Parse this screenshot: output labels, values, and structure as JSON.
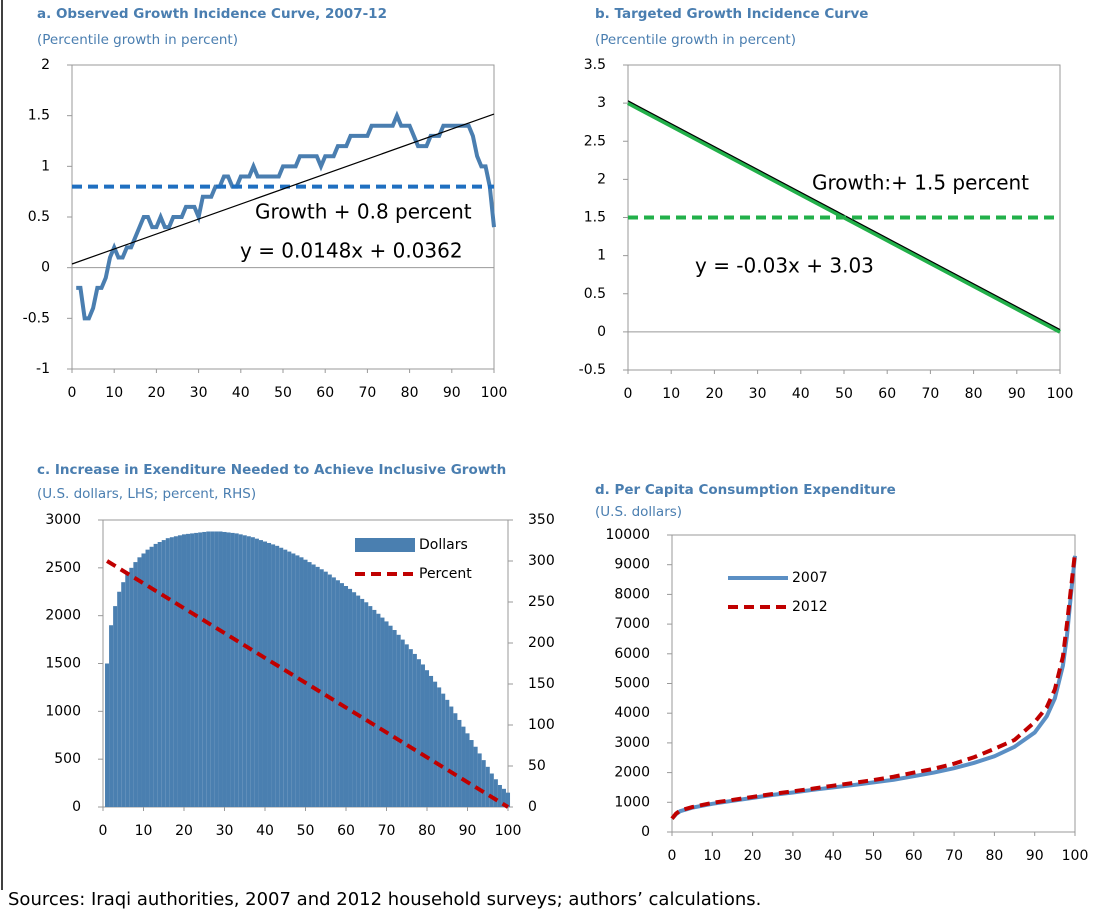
{
  "chart_data": [
    {
      "type": "line",
      "title": "a. Observed Growth Incidence Curve, 2007-12",
      "subtitle": "(Percentile growth in percent)",
      "x": [
        1,
        2,
        3,
        4,
        5,
        6,
        7,
        8,
        9,
        10,
        11,
        12,
        13,
        14,
        15,
        16,
        17,
        18,
        19,
        20,
        21,
        22,
        23,
        24,
        25,
        26,
        27,
        28,
        29,
        30,
        31,
        32,
        33,
        34,
        35,
        36,
        37,
        38,
        39,
        40,
        41,
        42,
        43,
        44,
        45,
        46,
        47,
        48,
        49,
        50,
        51,
        52,
        53,
        54,
        55,
        56,
        57,
        58,
        59,
        60,
        61,
        62,
        63,
        64,
        65,
        66,
        67,
        68,
        69,
        70,
        71,
        72,
        73,
        74,
        75,
        76,
        77,
        78,
        79,
        80,
        81,
        82,
        83,
        84,
        85,
        86,
        87,
        88,
        89,
        90,
        91,
        92,
        93,
        94,
        95,
        96,
        97,
        98,
        99,
        100
      ],
      "series": [
        {
          "color": "#4a7eb0",
          "width": 4,
          "values": [
            -0.2,
            -0.2,
            -0.5,
            -0.5,
            -0.4,
            -0.2,
            -0.2,
            -0.1,
            0.1,
            0.2,
            0.1,
            0.1,
            0.2,
            0.2,
            0.3,
            0.4,
            0.5,
            0.5,
            0.4,
            0.4,
            0.5,
            0.4,
            0.4,
            0.5,
            0.5,
            0.5,
            0.6,
            0.6,
            0.6,
            0.5,
            0.7,
            0.7,
            0.7,
            0.8,
            0.8,
            0.9,
            0.9,
            0.8,
            0.8,
            0.9,
            0.9,
            0.9,
            1,
            0.9,
            0.9,
            0.9,
            0.9,
            0.9,
            0.9,
            1,
            1,
            1,
            1,
            1.1,
            1.1,
            1.1,
            1.1,
            1.1,
            1,
            1.1,
            1.1,
            1.1,
            1.2,
            1.2,
            1.2,
            1.3,
            1.3,
            1.3,
            1.3,
            1.3,
            1.4,
            1.4,
            1.4,
            1.4,
            1.4,
            1.4,
            1.5,
            1.4,
            1.4,
            1.4,
            1.3,
            1.2,
            1.2,
            1.2,
            1.3,
            1.3,
            1.3,
            1.4,
            1.4,
            1.4,
            1.4,
            1.4,
            1.4,
            1.4,
            1.3,
            1.1,
            1,
            1,
            0.8,
            0.4
          ]
        },
        {
          "color": "#1f6fc0",
          "width": 4,
          "dash": true,
          "x": [
            0,
            100
          ],
          "values": [
            0.8,
            0.8
          ]
        },
        {
          "color": "#000000",
          "width": 1.2,
          "x": [
            0,
            100
          ],
          "values": [
            0.0362,
            1.5162
          ]
        }
      ],
      "annotations": [
        "Growth + 0.8 percent",
        "y = 0.0148x + 0.0362"
      ],
      "xlim": [
        0,
        100
      ],
      "xticks": [
        0,
        10,
        20,
        30,
        40,
        50,
        60,
        70,
        80,
        90,
        100
      ],
      "ylim": [
        -1,
        2
      ],
      "yticks": [
        -1,
        -0.5,
        0,
        0.5,
        1,
        1.5,
        2
      ]
    },
    {
      "type": "line",
      "title": "b. Targeted Growth Incidence Curve",
      "subtitle": "(Percentile growth in percent)",
      "series": [
        {
          "color": "#22b04a",
          "width": 4,
          "x": [
            0,
            100
          ],
          "values": [
            3,
            0
          ]
        },
        {
          "color": "#000000",
          "width": 1.2,
          "x": [
            0,
            100
          ],
          "values": [
            3.03,
            0.03
          ]
        },
        {
          "color": "#22b04a",
          "width": 4,
          "dash": true,
          "x": [
            0,
            100
          ],
          "values": [
            1.5,
            1.5
          ]
        }
      ],
      "annotations": [
        "Growth:+ 1.5 percent",
        "y = -0.03x + 3.03"
      ],
      "xlim": [
        0,
        100
      ],
      "xticks": [
        0,
        10,
        20,
        30,
        40,
        50,
        60,
        70,
        80,
        90,
        100
      ],
      "ylim": [
        -0.5,
        3.5
      ],
      "yticks": [
        -0.5,
        0,
        0.5,
        1,
        1.5,
        2,
        2.5,
        3,
        3.5
      ]
    },
    {
      "type": "bar",
      "title": "c. Increase in Exenditure Needed to Achieve Inclusive Growth",
      "subtitle": "(U.S. dollars, LHS; percent, RHS)",
      "x": [
        1,
        2,
        3,
        4,
        5,
        6,
        7,
        8,
        9,
        10,
        11,
        12,
        13,
        14,
        15,
        16,
        17,
        18,
        19,
        20,
        21,
        22,
        23,
        24,
        25,
        26,
        27,
        28,
        29,
        30,
        31,
        32,
        33,
        34,
        35,
        36,
        37,
        38,
        39,
        40,
        41,
        42,
        43,
        44,
        45,
        46,
        47,
        48,
        49,
        50,
        51,
        52,
        53,
        54,
        55,
        56,
        57,
        58,
        59,
        60,
        61,
        62,
        63,
        64,
        65,
        66,
        67,
        68,
        69,
        70,
        71,
        72,
        73,
        74,
        75,
        76,
        77,
        78,
        79,
        80,
        81,
        82,
        83,
        84,
        85,
        86,
        87,
        88,
        89,
        90,
        91,
        92,
        93,
        94,
        95,
        96,
        97,
        98,
        99,
        100
      ],
      "series": [
        {
          "name": "Dollars",
          "type": "bar",
          "color": "#4a7fb0",
          "values": [
            1500,
            1900,
            2100,
            2250,
            2350,
            2430,
            2500,
            2560,
            2610,
            2650,
            2690,
            2720,
            2750,
            2770,
            2790,
            2810,
            2820,
            2830,
            2840,
            2850,
            2855,
            2860,
            2865,
            2870,
            2875,
            2880,
            2880,
            2880,
            2880,
            2875,
            2870,
            2865,
            2860,
            2850,
            2840,
            2830,
            2820,
            2805,
            2790,
            2775,
            2760,
            2745,
            2730,
            2710,
            2690,
            2670,
            2650,
            2630,
            2610,
            2585,
            2560,
            2535,
            2510,
            2485,
            2460,
            2430,
            2400,
            2370,
            2340,
            2310,
            2280,
            2245,
            2210,
            2175,
            2140,
            2100,
            2060,
            2020,
            1980,
            1940,
            1895,
            1850,
            1800,
            1750,
            1700,
            1650,
            1600,
            1545,
            1490,
            1430,
            1370,
            1310,
            1250,
            1185,
            1120,
            1050,
            980,
            910,
            840,
            770,
            700,
            630,
            560,
            490,
            420,
            350,
            290,
            230,
            190,
            150
          ]
        },
        {
          "name": "Percent",
          "type": "line",
          "axis": "y2",
          "color": "#c00000",
          "width": 4,
          "dash": true,
          "x": [
            1,
            100
          ],
          "values": [
            300,
            0
          ]
        }
      ],
      "xlim": [
        0,
        100
      ],
      "xticks": [
        0,
        10,
        20,
        30,
        40,
        50,
        60,
        70,
        80,
        90,
        100
      ],
      "ylim": [
        0,
        3000
      ],
      "yticks": [
        0,
        500,
        1000,
        1500,
        2000,
        2500,
        3000
      ],
      "y2lim": [
        0,
        350
      ],
      "y2ticks": [
        0,
        50,
        100,
        150,
        200,
        250,
        300,
        350
      ]
    },
    {
      "type": "line",
      "title": "d. Per Capita Consumption Expenditure",
      "subtitle": "(U.S. dollars)",
      "x": [
        0,
        1,
        2,
        5,
        10,
        15,
        20,
        25,
        30,
        35,
        40,
        45,
        50,
        55,
        60,
        65,
        70,
        75,
        80,
        85,
        90,
        93,
        95,
        97,
        98,
        99,
        100
      ],
      "series": [
        {
          "name": "2007",
          "color": "#5b8fc4",
          "width": 4,
          "values": [
            450,
            600,
            700,
            820,
            950,
            1050,
            1150,
            1250,
            1330,
            1420,
            1500,
            1580,
            1670,
            1760,
            1880,
            2000,
            2150,
            2330,
            2550,
            2870,
            3350,
            3900,
            4500,
            5600,
            6600,
            8000,
            9300
          ]
        },
        {
          "name": "2012",
          "color": "#c00000",
          "width": 4,
          "dash": true,
          "values": [
            450,
            620,
            720,
            840,
            980,
            1080,
            1180,
            1280,
            1370,
            1460,
            1560,
            1650,
            1750,
            1860,
            2000,
            2130,
            2300,
            2520,
            2800,
            3100,
            3700,
            4200,
            4800,
            5900,
            7000,
            8200,
            9400
          ]
        }
      ],
      "xlim": [
        0,
        100
      ],
      "xticks": [
        0,
        10,
        20,
        30,
        40,
        50,
        60,
        70,
        80,
        90,
        100
      ],
      "ylim": [
        0,
        10000
      ],
      "yticks": [
        0,
        1000,
        2000,
        3000,
        4000,
        5000,
        6000,
        7000,
        8000,
        9000,
        10000
      ]
    }
  ],
  "source": "Sources: Iraqi authorities, 2007 and 2012 household surveys; authors’ calculations."
}
